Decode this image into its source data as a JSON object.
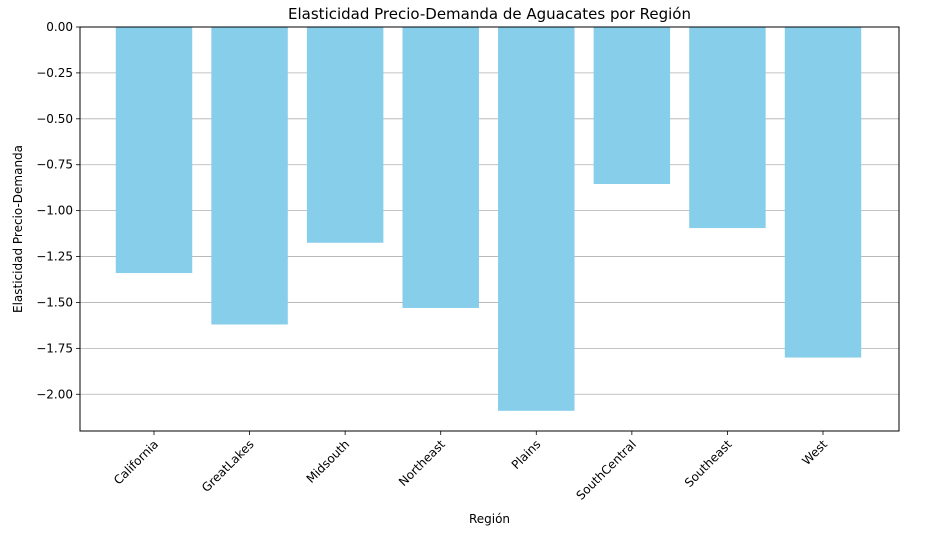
{
  "chart_data": {
    "type": "bar",
    "title": "Elasticidad Precio-Demanda de Aguacates por Región",
    "xlabel": "Región",
    "ylabel": "Elasticidad Precio-Demanda",
    "categories": [
      "California",
      "GreatLakes",
      "Midsouth",
      "Northeast",
      "Plains",
      "SouthCentral",
      "Southeast",
      "West"
    ],
    "values": [
      -1.34,
      -1.62,
      -1.175,
      -1.53,
      -2.09,
      -0.855,
      -1.095,
      -1.8
    ],
    "yticks": [
      0.0,
      -0.25,
      -0.5,
      -0.75,
      -1.0,
      -1.25,
      -1.5,
      -1.75,
      -2.0
    ],
    "ytick_labels": [
      "0.00",
      "−0.25",
      "−0.50",
      "−0.75",
      "−1.00",
      "−1.25",
      "−1.50",
      "−1.75",
      "−2.00"
    ],
    "ylim": [
      -2.2,
      0.0
    ],
    "grid": "horizontal",
    "bar_color": "#87CEEB"
  }
}
